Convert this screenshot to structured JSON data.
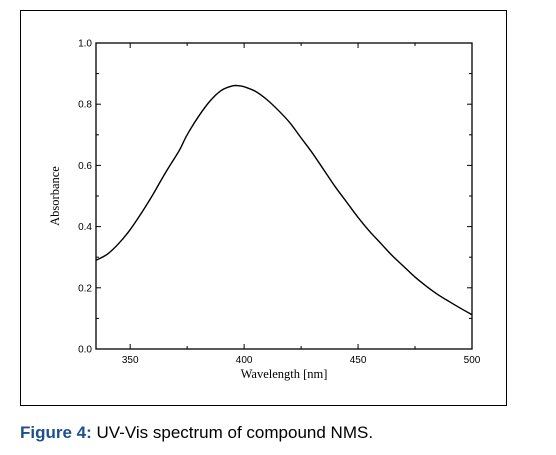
{
  "chart_data": {
    "type": "line",
    "xlabel": "Wavelength [nm]",
    "ylabel": "Absorbance",
    "xlim": [
      335,
      500
    ],
    "ylim": [
      0.0,
      1.0
    ],
    "xticks": [
      350,
      400,
      450,
      500
    ],
    "yticks": [
      "0.0",
      "0.2",
      "0.4",
      "0.6",
      "0.8",
      "1.0"
    ],
    "grid": false,
    "series": [
      {
        "color": "#000000",
        "x": [
          335,
          340,
          345,
          350,
          355,
          360,
          365,
          370,
          372,
          375,
          380,
          385,
          390,
          395,
          398,
          400,
          405,
          410,
          415,
          420,
          425,
          430,
          435,
          440,
          445,
          450,
          455,
          460,
          465,
          470,
          475,
          480,
          485,
          490,
          495,
          500
        ],
        "y": [
          0.29,
          0.31,
          0.345,
          0.39,
          0.445,
          0.505,
          0.57,
          0.63,
          0.655,
          0.7,
          0.76,
          0.81,
          0.845,
          0.86,
          0.86,
          0.857,
          0.842,
          0.815,
          0.78,
          0.74,
          0.69,
          0.64,
          0.585,
          0.53,
          0.48,
          0.43,
          0.385,
          0.345,
          0.305,
          0.27,
          0.235,
          0.205,
          0.178,
          0.155,
          0.133,
          0.112
        ]
      }
    ]
  },
  "caption": {
    "label": "Figure 4:",
    "text": " UV-Vis spectrum of compound NMS."
  }
}
